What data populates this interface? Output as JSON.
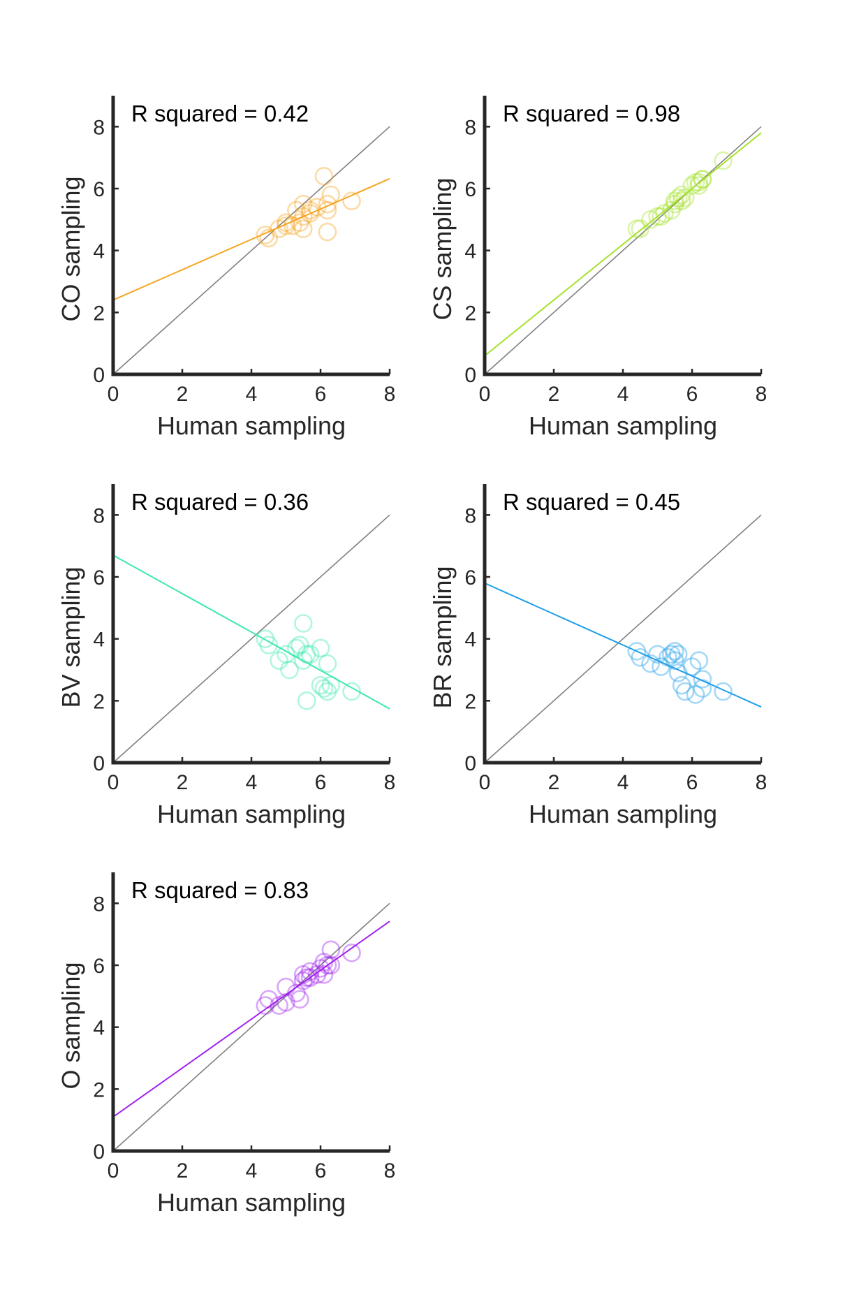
{
  "chart_data": [
    {
      "type": "scatter",
      "xlabel": "Human sampling",
      "ylabel": "CO sampling",
      "annotation": "R squared = 0.42",
      "xlim": [
        0,
        8
      ],
      "ylim": [
        0,
        9
      ],
      "xticks": [
        0,
        2,
        4,
        6,
        8
      ],
      "yticks": [
        0,
        2,
        4,
        6,
        8
      ],
      "color": "#f5a623",
      "fit": {
        "intercept": 2.4,
        "slope": 0.49
      },
      "identity_line": true,
      "points": [
        [
          4.4,
          4.5
        ],
        [
          4.5,
          4.4
        ],
        [
          4.8,
          4.7
        ],
        [
          5.0,
          4.9
        ],
        [
          5.0,
          4.8
        ],
        [
          5.2,
          4.8
        ],
        [
          5.3,
          5.3
        ],
        [
          5.4,
          4.9
        ],
        [
          5.5,
          5.5
        ],
        [
          5.5,
          4.7
        ],
        [
          5.5,
          5.1
        ],
        [
          5.7,
          5.3
        ],
        [
          5.7,
          5.2
        ],
        [
          5.9,
          5.4
        ],
        [
          6.1,
          6.4
        ],
        [
          6.2,
          5.3
        ],
        [
          6.2,
          5.5
        ],
        [
          6.2,
          4.6
        ],
        [
          6.3,
          5.8
        ],
        [
          6.9,
          5.6
        ]
      ]
    },
    {
      "type": "scatter",
      "xlabel": "Human sampling",
      "ylabel": "CS sampling",
      "annotation": "R squared = 0.98",
      "xlim": [
        0,
        8
      ],
      "ylim": [
        0,
        9
      ],
      "xticks": [
        0,
        2,
        4,
        6,
        8
      ],
      "yticks": [
        0,
        2,
        4,
        6,
        8
      ],
      "color": "#a6e22e",
      "fit": {
        "intercept": 0.6,
        "slope": 0.9
      },
      "identity_line": true,
      "points": [
        [
          4.4,
          4.7
        ],
        [
          4.5,
          4.7
        ],
        [
          4.8,
          5.0
        ],
        [
          5.0,
          5.1
        ],
        [
          5.1,
          5.1
        ],
        [
          5.2,
          5.2
        ],
        [
          5.4,
          5.3
        ],
        [
          5.5,
          5.5
        ],
        [
          5.5,
          5.6
        ],
        [
          5.6,
          5.7
        ],
        [
          5.7,
          5.6
        ],
        [
          5.7,
          5.8
        ],
        [
          5.8,
          5.7
        ],
        [
          6.0,
          6.1
        ],
        [
          6.1,
          6.2
        ],
        [
          6.2,
          6.1
        ],
        [
          6.2,
          6.2
        ],
        [
          6.3,
          6.3
        ],
        [
          6.3,
          6.3
        ],
        [
          6.9,
          6.9
        ]
      ]
    },
    {
      "type": "scatter",
      "xlabel": "Human sampling",
      "ylabel": "BV sampling",
      "annotation": "R squared = 0.36",
      "xlim": [
        0,
        8
      ],
      "ylim": [
        0,
        9
      ],
      "xticks": [
        0,
        2,
        4,
        6,
        8
      ],
      "yticks": [
        0,
        2,
        4,
        6,
        8
      ],
      "color": "#3de8b0",
      "fit": {
        "intercept": 6.7,
        "slope": -0.62
      },
      "identity_line": true,
      "points": [
        [
          4.4,
          4.0
        ],
        [
          4.5,
          3.8
        ],
        [
          4.8,
          3.3
        ],
        [
          5.0,
          3.5
        ],
        [
          5.1,
          3.0
        ],
        [
          5.3,
          3.7
        ],
        [
          5.4,
          3.8
        ],
        [
          5.5,
          3.3
        ],
        [
          5.5,
          4.5
        ],
        [
          5.6,
          3.5
        ],
        [
          5.7,
          3.5
        ],
        [
          5.6,
          2.0
        ],
        [
          6.0,
          3.7
        ],
        [
          6.0,
          2.5
        ],
        [
          6.1,
          2.4
        ],
        [
          6.2,
          2.3
        ],
        [
          6.2,
          3.2
        ],
        [
          6.3,
          2.5
        ],
        [
          6.9,
          2.3
        ]
      ]
    },
    {
      "type": "scatter",
      "xlabel": "Human sampling",
      "ylabel": "BR sampling",
      "annotation": "R squared = 0.45",
      "xlim": [
        0,
        8
      ],
      "ylim": [
        0,
        9
      ],
      "xticks": [
        0,
        2,
        4,
        6,
        8
      ],
      "yticks": [
        0,
        2,
        4,
        6,
        8
      ],
      "color": "#1e9ee8",
      "fit": {
        "intercept": 5.8,
        "slope": -0.5
      },
      "identity_line": true,
      "points": [
        [
          4.4,
          3.6
        ],
        [
          4.5,
          3.4
        ],
        [
          4.8,
          3.2
        ],
        [
          5.0,
          3.5
        ],
        [
          5.1,
          3.1
        ],
        [
          5.3,
          3.4
        ],
        [
          5.4,
          3.5
        ],
        [
          5.5,
          3.3
        ],
        [
          5.5,
          3.6
        ],
        [
          5.6,
          3.5
        ],
        [
          5.6,
          2.9
        ],
        [
          5.7,
          2.5
        ],
        [
          5.8,
          2.3
        ],
        [
          6.0,
          3.1
        ],
        [
          6.1,
          2.2
        ],
        [
          6.2,
          3.3
        ],
        [
          6.3,
          2.7
        ],
        [
          6.3,
          2.4
        ],
        [
          6.9,
          2.3
        ]
      ]
    },
    {
      "type": "scatter",
      "xlabel": "Human sampling",
      "ylabel": "O sampling",
      "annotation": "R squared = 0.83",
      "xlim": [
        0,
        8
      ],
      "ylim": [
        0,
        9
      ],
      "xticks": [
        0,
        2,
        4,
        6,
        8
      ],
      "yticks": [
        0,
        2,
        4,
        6,
        8
      ],
      "color": "#a020f0",
      "fit": {
        "intercept": 1.1,
        "slope": 0.79
      },
      "identity_line": true,
      "points": [
        [
          4.4,
          4.7
        ],
        [
          4.5,
          4.9
        ],
        [
          4.8,
          4.7
        ],
        [
          5.0,
          4.8
        ],
        [
          5.0,
          5.3
        ],
        [
          5.3,
          5.1
        ],
        [
          5.4,
          4.9
        ],
        [
          5.5,
          5.5
        ],
        [
          5.5,
          5.7
        ],
        [
          5.6,
          5.6
        ],
        [
          5.7,
          5.8
        ],
        [
          5.7,
          5.6
        ],
        [
          5.9,
          5.7
        ],
        [
          6.0,
          5.9
        ],
        [
          6.1,
          6.1
        ],
        [
          6.1,
          5.7
        ],
        [
          6.2,
          6.0
        ],
        [
          6.3,
          6.0
        ],
        [
          6.3,
          6.5
        ],
        [
          6.9,
          6.4
        ]
      ]
    }
  ]
}
